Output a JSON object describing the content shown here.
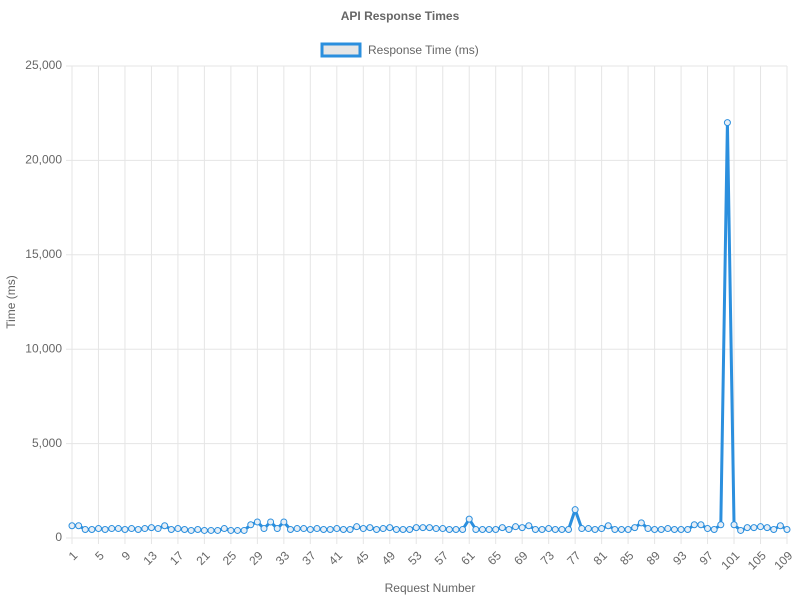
{
  "chart_data": {
    "type": "line",
    "title": "API Response Times",
    "xlabel": "Request Number",
    "ylabel": "Time (ms)",
    "categories": [
      1,
      null,
      null,
      null,
      5,
      null,
      null,
      null,
      9,
      null,
      null,
      null,
      13,
      null,
      null,
      null,
      17,
      null,
      null,
      null,
      21,
      null,
      null,
      null,
      25,
      null,
      null,
      null,
      29,
      null,
      null,
      null,
      33,
      null,
      null,
      null,
      37,
      null,
      null,
      null,
      41,
      null,
      null,
      null,
      45,
      null,
      null,
      null,
      49,
      null,
      null,
      null,
      53,
      null,
      null,
      null,
      57,
      null,
      null,
      null,
      61,
      null,
      null,
      null,
      65,
      null,
      null,
      null,
      69,
      null,
      null,
      null,
      73,
      null,
      null,
      null,
      77,
      null,
      null,
      null,
      81,
      null,
      null,
      null,
      85,
      null,
      null,
      null,
      89,
      null,
      null,
      null,
      93,
      null,
      null,
      null,
      97,
      null,
      null,
      null,
      101,
      null,
      null,
      null,
      105,
      null,
      null,
      null,
      109
    ],
    "series": [
      {
        "name": "Response Time (ms)",
        "color": "#2b8fde",
        "values": [
          650,
          650,
          450,
          450,
          500,
          450,
          500,
          500,
          450,
          500,
          450,
          500,
          550,
          500,
          650,
          450,
          500,
          450,
          400,
          450,
          400,
          400,
          400,
          500,
          400,
          400,
          400,
          700,
          850,
          500,
          850,
          500,
          850,
          450,
          500,
          500,
          450,
          500,
          450,
          450,
          500,
          450,
          450,
          600,
          500,
          550,
          450,
          500,
          550,
          450,
          450,
          450,
          550,
          550,
          550,
          500,
          500,
          450,
          450,
          450,
          1000,
          450,
          450,
          450,
          450,
          550,
          450,
          600,
          550,
          650,
          450,
          450,
          500,
          450,
          450,
          450,
          1500,
          500,
          500,
          450,
          500,
          650,
          450,
          450,
          450,
          550,
          800,
          500,
          450,
          450,
          500,
          450,
          450,
          450,
          700,
          700,
          500,
          450,
          700,
          22000,
          700,
          400,
          550,
          550,
          600,
          550,
          450,
          650,
          450
        ]
      }
    ],
    "ylim": [
      0,
      25000
    ],
    "yticks": [
      0,
      {
        "value": 5000,
        "label": "5,000"
      },
      {
        "value": 10000,
        "label": "10,000"
      },
      {
        "value": 15000,
        "label": "15,000"
      },
      {
        "value": 20000,
        "label": "20,000"
      },
      {
        "value": 25000,
        "label": "25,000"
      }
    ],
    "grid": true,
    "legend": "top"
  }
}
